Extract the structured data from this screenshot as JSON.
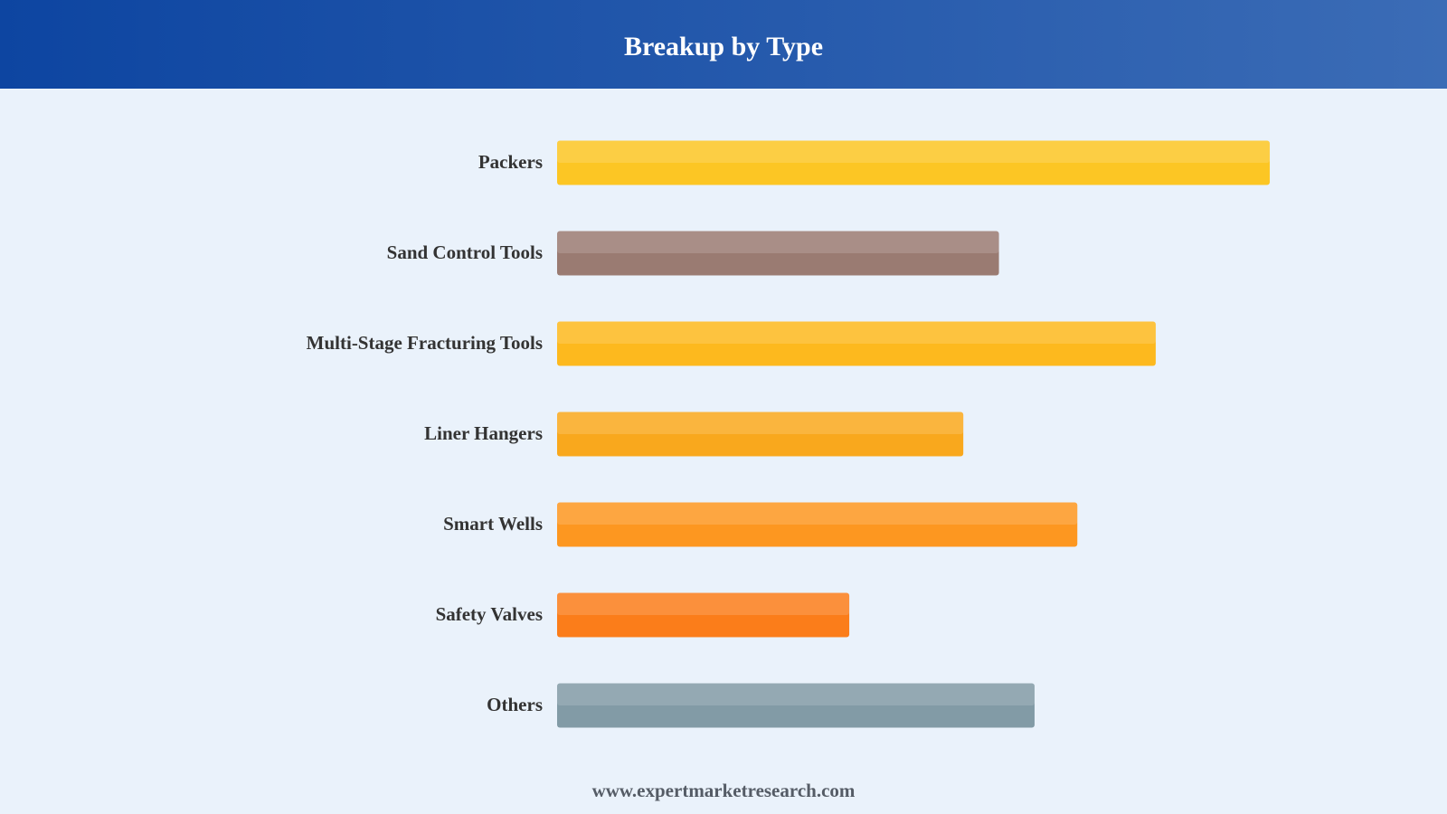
{
  "chart_data": {
    "type": "bar",
    "title": "Breakup by Type",
    "categories": [
      "Packers",
      "Sand Control Tools",
      "Multi-Stage Fracturing Tools",
      "Liner Hangers",
      "Smart Wells",
      "Safety Valves",
      "Others"
    ],
    "values": [
      100,
      62,
      84,
      57,
      73,
      41,
      67
    ],
    "colors": [
      "#fcc624",
      "#9a7b72",
      "#fdb91e",
      "#f9a81d",
      "#fd9720",
      "#fb7d1a",
      "#829ba6"
    ],
    "footer": "www.expertmarketresearch.com"
  }
}
